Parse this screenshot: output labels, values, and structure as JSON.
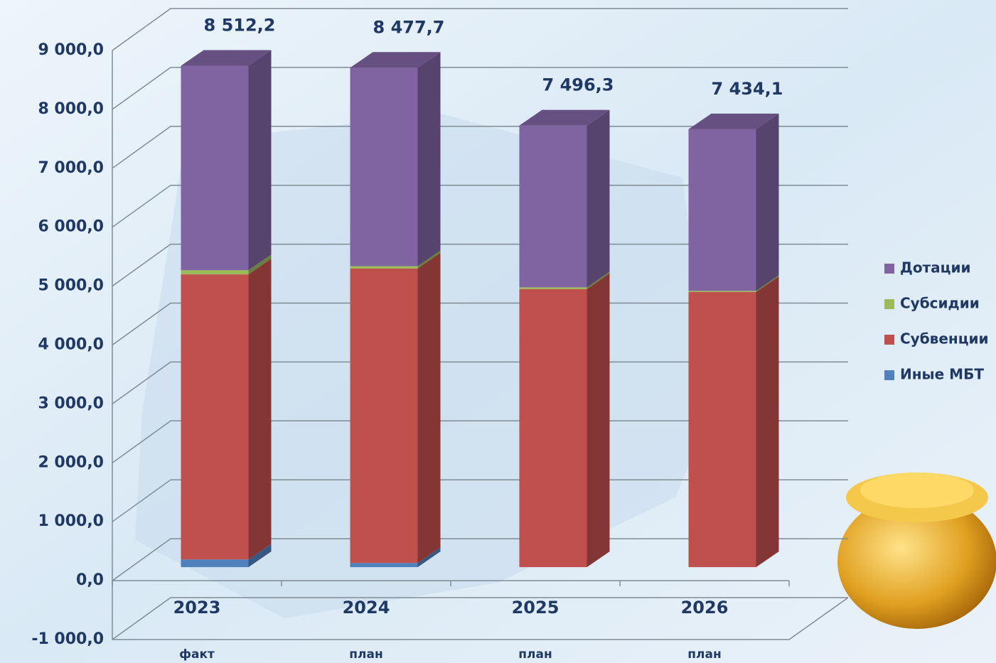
{
  "chart_data": {
    "type": "bar",
    "stacked": true,
    "categories": [
      "2023",
      "2024",
      "2025",
      "2026"
    ],
    "category_notes": [
      "факт",
      "план",
      "план",
      "план"
    ],
    "series": [
      {
        "name": "Иные МБТ",
        "color": "#4f81bd",
        "values": [
          130,
          70,
          0,
          0
        ]
      },
      {
        "name": "Субвенции",
        "color": "#c0504d",
        "values": [
          4840,
          5000,
          4720,
          4670
        ]
      },
      {
        "name": "Субсидии",
        "color": "#9bbb59",
        "values": [
          70,
          40,
          30,
          20
        ]
      },
      {
        "name": "Дотации",
        "color": "#8064a2",
        "values": [
          3472.2,
          3367.7,
          2746.3,
          2744.1
        ]
      }
    ],
    "totals": [
      8512.2,
      8477.7,
      7496.3,
      7434.1
    ],
    "total_labels": [
      "8 512,2",
      "8 477,7",
      "7 496,3",
      "7 434,1"
    ],
    "ylim": [
      -1000,
      9000
    ],
    "yticks": [
      {
        "value": -1000,
        "label": "-1 000,0"
      },
      {
        "value": 0,
        "label": "0,0"
      },
      {
        "value": 1000,
        "label": "1 000,0"
      },
      {
        "value": 2000,
        "label": "2 000,0"
      },
      {
        "value": 3000,
        "label": "3 000,0"
      },
      {
        "value": 4000,
        "label": "4 000,0"
      },
      {
        "value": 5000,
        "label": "5 000,0"
      },
      {
        "value": 6000,
        "label": "6 000,0"
      },
      {
        "value": 7000,
        "label": "7 000,0"
      },
      {
        "value": 8000,
        "label": "8 000,0"
      },
      {
        "value": 9000,
        "label": "9 000,0"
      }
    ],
    "grid": true,
    "legend": "right"
  }
}
